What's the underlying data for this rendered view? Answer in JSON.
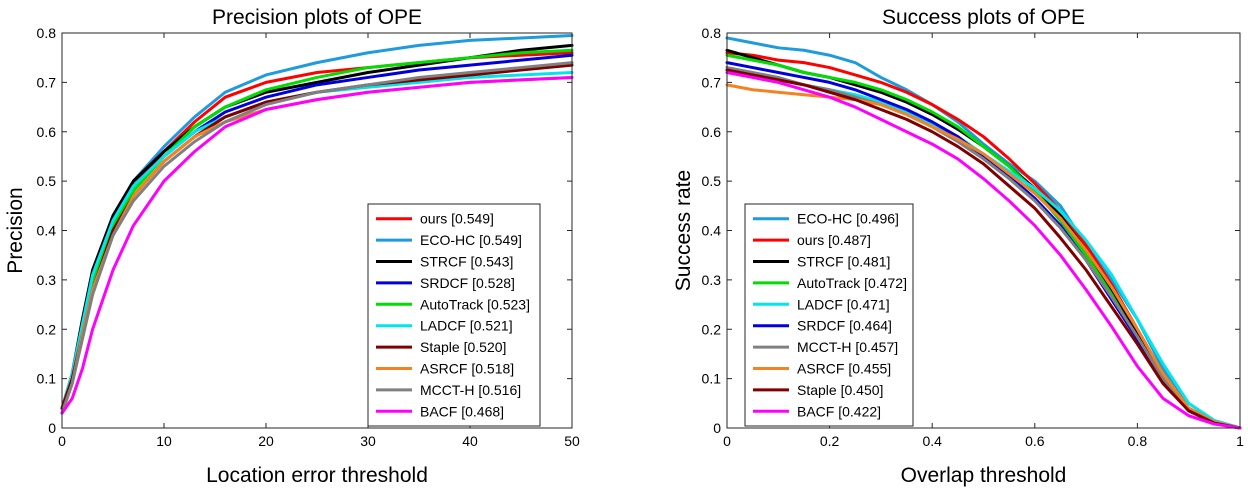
{
  "chart_data": [
    {
      "type": "line",
      "title": "Precision plots of OPE",
      "xlabel": "Location error threshold",
      "ylabel": "Precision",
      "xlim": [
        0,
        50
      ],
      "ylim": [
        0,
        0.8
      ],
      "xticks": [
        0,
        10,
        20,
        30,
        40,
        50
      ],
      "yticks": [
        0,
        0.1,
        0.2,
        0.3,
        0.4,
        0.5,
        0.6,
        0.7,
        0.8
      ],
      "xtick_labels": [
        "0",
        "10",
        "20",
        "30",
        "40",
        "50"
      ],
      "ytick_labels": [
        "0",
        "0.1",
        "0.2",
        "0.3",
        "0.4",
        "0.5",
        "0.6",
        "0.7",
        "0.8"
      ],
      "legend_position": "bottom-right",
      "x": [
        0,
        1,
        2,
        3,
        5,
        7,
        10,
        13,
        16,
        20,
        25,
        30,
        35,
        40,
        45,
        50
      ],
      "series": [
        {
          "name": "ours",
          "legend": "ours [0.549]",
          "color": "#ff0000",
          "values": [
            0.04,
            0.1,
            0.2,
            0.3,
            0.42,
            0.49,
            0.56,
            0.62,
            0.67,
            0.7,
            0.72,
            0.73,
            0.74,
            0.75,
            0.755,
            0.76
          ]
        },
        {
          "name": "ECO-HC",
          "legend": "ECO-HC [0.549]",
          "color": "#1e9bdc",
          "values": [
            0.04,
            0.1,
            0.21,
            0.31,
            0.43,
            0.5,
            0.57,
            0.63,
            0.68,
            0.715,
            0.74,
            0.76,
            0.775,
            0.785,
            0.79,
            0.795
          ]
        },
        {
          "name": "STRCF",
          "legend": "STRCF [0.543]",
          "color": "#000000",
          "values": [
            0.04,
            0.11,
            0.22,
            0.32,
            0.43,
            0.5,
            0.56,
            0.61,
            0.65,
            0.68,
            0.7,
            0.72,
            0.735,
            0.75,
            0.765,
            0.775
          ]
        },
        {
          "name": "SRDCF",
          "legend": "SRDCF [0.528]",
          "color": "#0000dd",
          "values": [
            0.04,
            0.1,
            0.2,
            0.3,
            0.42,
            0.49,
            0.55,
            0.6,
            0.64,
            0.67,
            0.695,
            0.71,
            0.725,
            0.735,
            0.745,
            0.755
          ]
        },
        {
          "name": "AutoTrack",
          "legend": "AutoTrack [0.523]",
          "color": "#00dd00",
          "values": [
            0.04,
            0.1,
            0.2,
            0.3,
            0.41,
            0.48,
            0.55,
            0.61,
            0.65,
            0.685,
            0.71,
            0.73,
            0.74,
            0.75,
            0.76,
            0.765
          ]
        },
        {
          "name": "LADCF",
          "legend": "LADCF [0.521]",
          "color": "#00e5ee",
          "values": [
            0.04,
            0.11,
            0.21,
            0.31,
            0.42,
            0.49,
            0.55,
            0.6,
            0.63,
            0.66,
            0.68,
            0.69,
            0.7,
            0.71,
            0.715,
            0.72
          ]
        },
        {
          "name": "Staple",
          "legend": "Staple [0.520]",
          "color": "#800000",
          "values": [
            0.04,
            0.1,
            0.19,
            0.28,
            0.4,
            0.47,
            0.54,
            0.59,
            0.63,
            0.66,
            0.68,
            0.695,
            0.705,
            0.715,
            0.725,
            0.735
          ]
        },
        {
          "name": "ASRCF",
          "legend": "ASRCF [0.518]",
          "color": "#f58220",
          "values": [
            0.03,
            0.09,
            0.19,
            0.28,
            0.39,
            0.47,
            0.54,
            0.59,
            0.62,
            0.645,
            0.665,
            0.68,
            0.69,
            0.7,
            0.705,
            0.71
          ]
        },
        {
          "name": "MCCT-H",
          "legend": "MCCT-H [0.516]",
          "color": "#808080",
          "values": [
            0.03,
            0.09,
            0.18,
            0.27,
            0.39,
            0.46,
            0.53,
            0.58,
            0.62,
            0.655,
            0.68,
            0.695,
            0.71,
            0.72,
            0.73,
            0.74
          ]
        },
        {
          "name": "BACF",
          "legend": "BACF [0.468]",
          "color": "#ff00ff",
          "values": [
            0.03,
            0.06,
            0.12,
            0.2,
            0.32,
            0.41,
            0.5,
            0.56,
            0.61,
            0.645,
            0.665,
            0.68,
            0.69,
            0.7,
            0.705,
            0.71
          ]
        }
      ]
    },
    {
      "type": "line",
      "title": "Success plots of OPE",
      "xlabel": "Overlap threshold",
      "ylabel": "Success rate",
      "xlim": [
        0,
        1
      ],
      "ylim": [
        0,
        0.8
      ],
      "xticks": [
        0,
        0.2,
        0.4,
        0.6,
        0.8,
        1
      ],
      "yticks": [
        0,
        0.1,
        0.2,
        0.3,
        0.4,
        0.5,
        0.6,
        0.7,
        0.8
      ],
      "xtick_labels": [
        "0",
        "0.2",
        "0.4",
        "0.6",
        "0.8",
        "1"
      ],
      "ytick_labels": [
        "0",
        "0.1",
        "0.2",
        "0.3",
        "0.4",
        "0.5",
        "0.6",
        "0.7",
        "0.8"
      ],
      "legend_position": "bottom-left",
      "x": [
        0,
        0.05,
        0.1,
        0.15,
        0.2,
        0.25,
        0.3,
        0.35,
        0.4,
        0.45,
        0.5,
        0.55,
        0.6,
        0.65,
        0.7,
        0.75,
        0.8,
        0.85,
        0.9,
        0.95,
        1.0
      ],
      "series": [
        {
          "name": "ECO-HC",
          "legend": "ECO-HC [0.496]",
          "color": "#1e9bdc",
          "values": [
            0.79,
            0.78,
            0.77,
            0.765,
            0.755,
            0.74,
            0.71,
            0.685,
            0.655,
            0.62,
            0.575,
            0.535,
            0.5,
            0.45,
            0.37,
            0.3,
            0.22,
            0.12,
            0.05,
            0.015,
            0.0
          ]
        },
        {
          "name": "ours",
          "legend": "ours [0.487]",
          "color": "#ff0000",
          "values": [
            0.76,
            0.755,
            0.745,
            0.74,
            0.73,
            0.715,
            0.7,
            0.68,
            0.655,
            0.625,
            0.59,
            0.545,
            0.495,
            0.44,
            0.37,
            0.29,
            0.2,
            0.11,
            0.04,
            0.012,
            0.0
          ]
        },
        {
          "name": "STRCF",
          "legend": "STRCF [0.481]",
          "color": "#000000",
          "values": [
            0.765,
            0.75,
            0.735,
            0.72,
            0.71,
            0.695,
            0.68,
            0.66,
            0.635,
            0.605,
            0.57,
            0.53,
            0.485,
            0.43,
            0.36,
            0.28,
            0.19,
            0.1,
            0.04,
            0.012,
            0.0
          ]
        },
        {
          "name": "AutoTrack",
          "legend": "AutoTrack [0.472]",
          "color": "#00dd00",
          "values": [
            0.755,
            0.745,
            0.735,
            0.72,
            0.71,
            0.7,
            0.685,
            0.665,
            0.64,
            0.61,
            0.57,
            0.53,
            0.48,
            0.42,
            0.35,
            0.27,
            0.18,
            0.095,
            0.035,
            0.01,
            0.0
          ]
        },
        {
          "name": "LADCF",
          "legend": "LADCF [0.471]",
          "color": "#00e5ee",
          "values": [
            0.72,
            0.715,
            0.705,
            0.695,
            0.685,
            0.675,
            0.66,
            0.64,
            0.615,
            0.59,
            0.555,
            0.52,
            0.485,
            0.44,
            0.38,
            0.31,
            0.22,
            0.13,
            0.05,
            0.015,
            0.0
          ]
        },
        {
          "name": "SRDCF",
          "legend": "SRDCF [0.464]",
          "color": "#0000dd",
          "values": [
            0.74,
            0.73,
            0.72,
            0.71,
            0.7,
            0.685,
            0.665,
            0.645,
            0.62,
            0.59,
            0.55,
            0.51,
            0.465,
            0.41,
            0.34,
            0.26,
            0.18,
            0.095,
            0.035,
            0.01,
            0.0
          ]
        },
        {
          "name": "MCCT-H",
          "legend": "MCCT-H [0.457]",
          "color": "#808080",
          "values": [
            0.73,
            0.72,
            0.71,
            0.695,
            0.685,
            0.67,
            0.655,
            0.635,
            0.61,
            0.58,
            0.545,
            0.505,
            0.46,
            0.405,
            0.34,
            0.265,
            0.185,
            0.1,
            0.04,
            0.012,
            0.0
          ]
        },
        {
          "name": "ASRCF",
          "legend": "ASRCF [0.455]",
          "color": "#f58220",
          "values": [
            0.695,
            0.685,
            0.68,
            0.675,
            0.67,
            0.665,
            0.655,
            0.635,
            0.61,
            0.585,
            0.555,
            0.515,
            0.475,
            0.425,
            0.36,
            0.285,
            0.2,
            0.11,
            0.04,
            0.012,
            0.0
          ]
        },
        {
          "name": "Staple",
          "legend": "Staple [0.450]",
          "color": "#800000",
          "values": [
            0.725,
            0.715,
            0.705,
            0.695,
            0.68,
            0.665,
            0.645,
            0.625,
            0.6,
            0.57,
            0.535,
            0.49,
            0.445,
            0.385,
            0.32,
            0.245,
            0.17,
            0.09,
            0.035,
            0.01,
            0.0
          ]
        },
        {
          "name": "BACF",
          "legend": "BACF [0.422]",
          "color": "#ff00ff",
          "values": [
            0.72,
            0.71,
            0.7,
            0.685,
            0.67,
            0.65,
            0.625,
            0.6,
            0.575,
            0.545,
            0.505,
            0.46,
            0.41,
            0.35,
            0.28,
            0.205,
            0.125,
            0.06,
            0.025,
            0.008,
            0.0
          ]
        }
      ]
    }
  ]
}
